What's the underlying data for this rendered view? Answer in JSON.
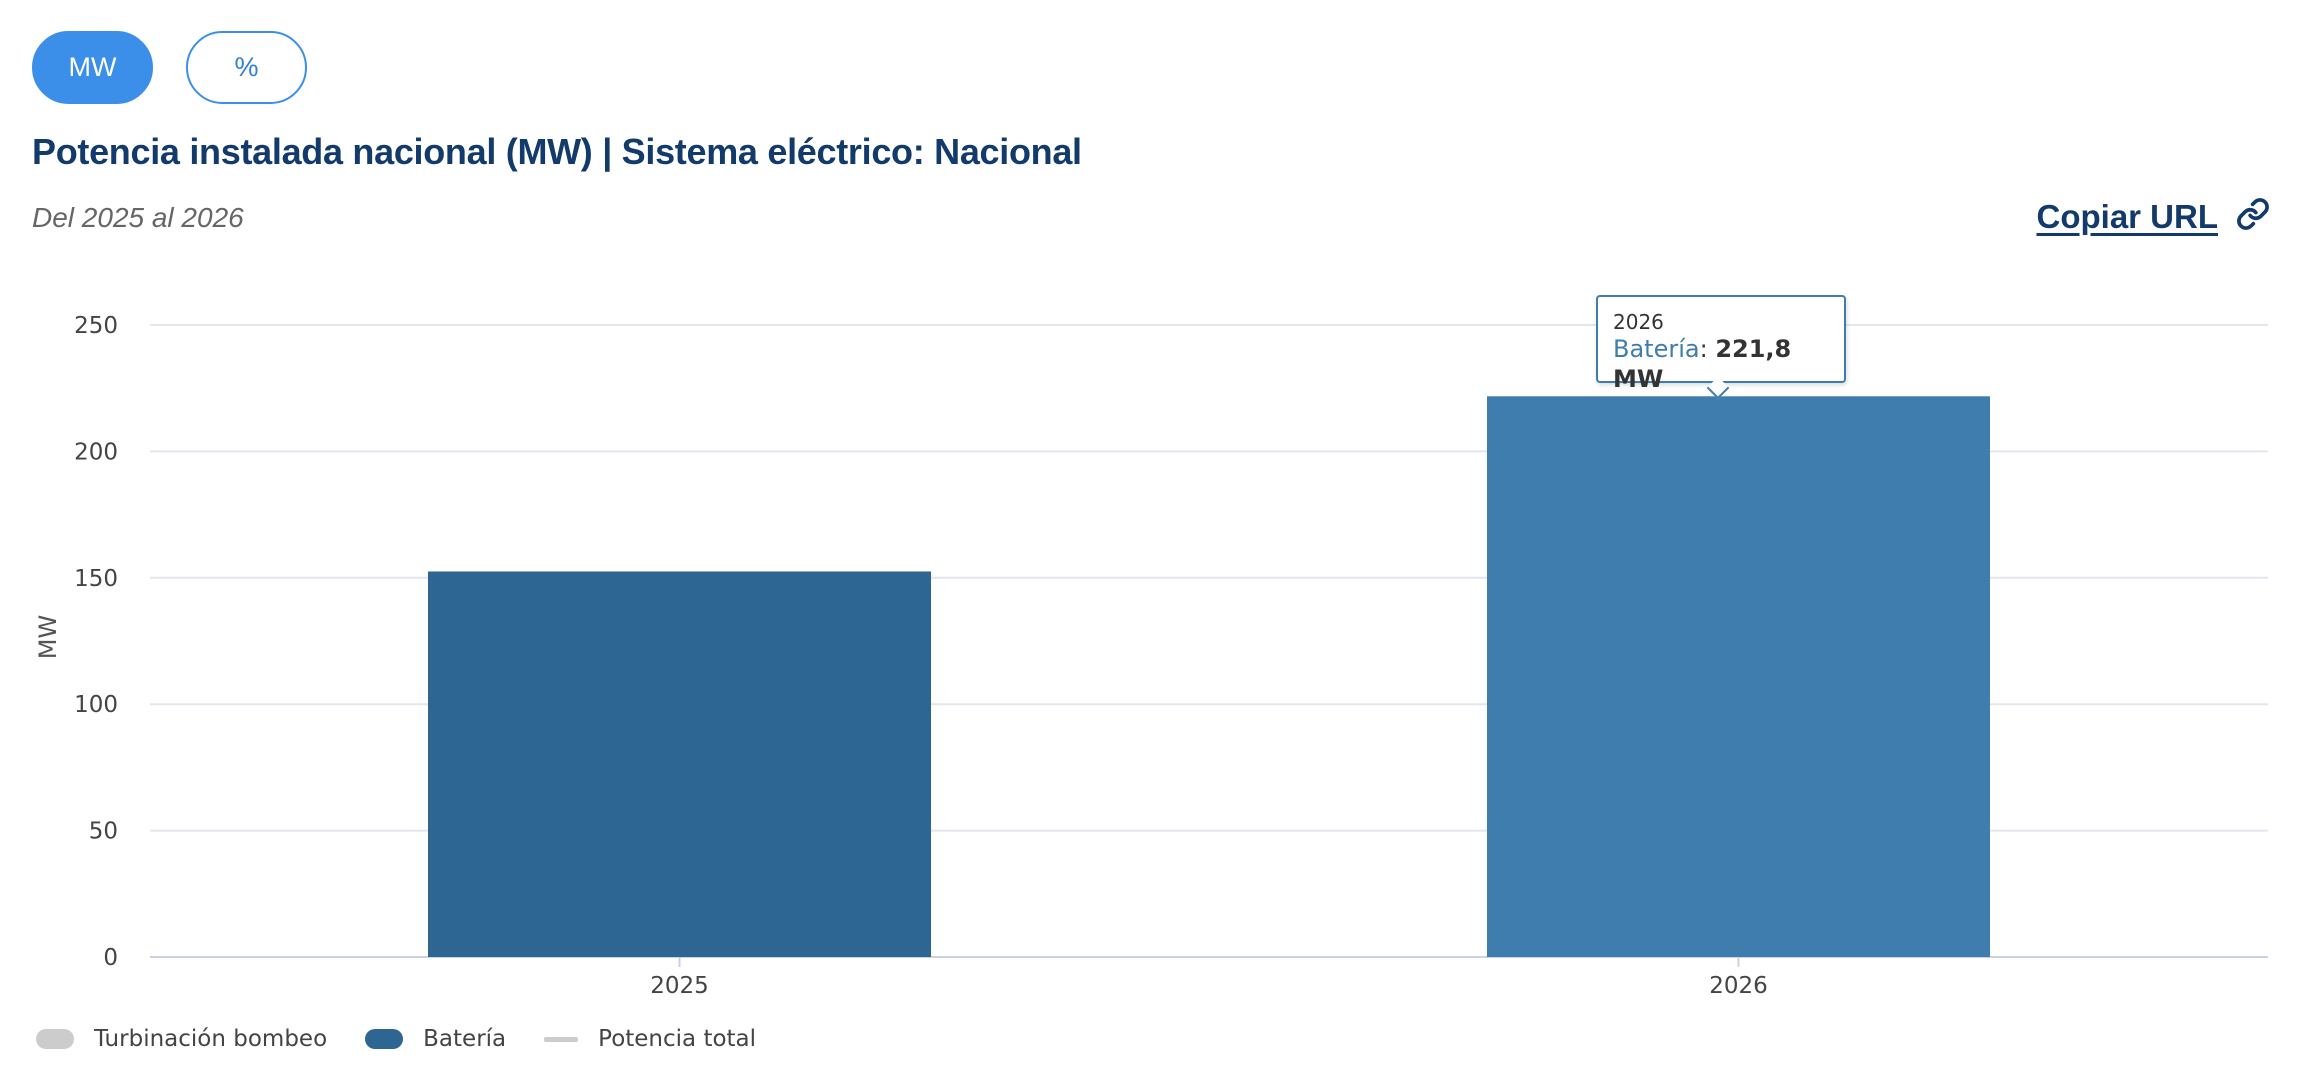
{
  "toggles": [
    {
      "label": "MW",
      "active": true
    },
    {
      "label": "%",
      "active": false
    }
  ],
  "header": {
    "title": "Potencia instalada nacional (MW) | Sistema eléctrico: Nacional",
    "subtitle": "Del 2025 al 2026",
    "copy_url_label": "Copiar URL",
    "copy_url_icon": "link-icon"
  },
  "chart_data": {
    "type": "bar",
    "categories": [
      "2025",
      "2026"
    ],
    "series": [
      {
        "name": "Batería",
        "values": [
          152.5,
          221.8
        ],
        "color": "#2d6693",
        "highlight_color": "#3e7dad"
      }
    ],
    "ylabel": "MW",
    "ylim": [
      0,
      250
    ],
    "yticks": [
      0,
      50,
      100,
      150,
      200,
      250
    ],
    "grid": true,
    "legend_position": "bottom-left",
    "legend": [
      {
        "label": "Turbinación bombeo",
        "symbol": "pill",
        "color": "#cccccc"
      },
      {
        "label": "Batería",
        "symbol": "pill",
        "color": "#2d6693"
      },
      {
        "label": "Potencia total",
        "symbol": "line",
        "color": "#cccccc"
      }
    ],
    "highlighted_index": 1,
    "tooltip": {
      "category": "2026",
      "series": "Batería",
      "value": "221,8 MW"
    }
  }
}
